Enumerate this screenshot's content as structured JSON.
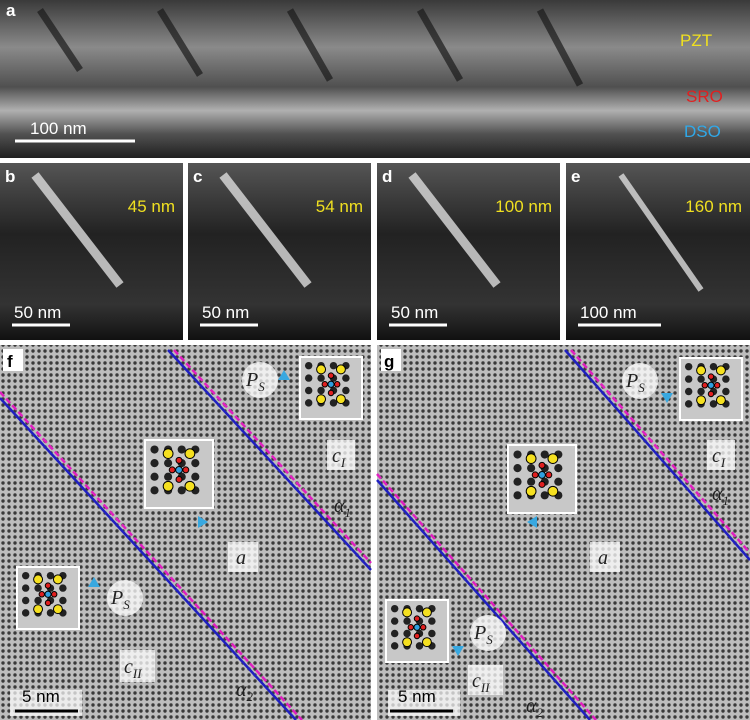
{
  "panels": [
    {
      "letter": "a",
      "layers": [
        "PZT",
        "SRO",
        "DSO"
      ],
      "scale_bar": "100 nm"
    },
    {
      "letter": "b",
      "thickness": "45 nm",
      "scale_bar": "50 nm"
    },
    {
      "letter": "c",
      "thickness": "54 nm",
      "scale_bar": "50 nm"
    },
    {
      "letter": "d",
      "thickness": "100 nm",
      "scale_bar": "50 nm"
    },
    {
      "letter": "e",
      "thickness": "160 nm",
      "scale_bar": "100 nm"
    },
    {
      "letter": "f",
      "ps_labels": [
        {
          "main": "P",
          "sub": "S"
        },
        {
          "main": "P",
          "sub": "S"
        }
      ],
      "domains": [
        {
          "main": "c",
          "sub": "I"
        },
        {
          "main": "a"
        },
        {
          "main": "c",
          "sub": "II"
        }
      ],
      "walls": [
        {
          "main": "α",
          "sub": "1"
        },
        {
          "main": "α",
          "sub": "2"
        }
      ],
      "scale_bar": "5 nm"
    },
    {
      "letter": "g",
      "ps_labels": [
        {
          "main": "P",
          "sub": "S"
        },
        {
          "main": "P",
          "sub": "S"
        }
      ],
      "domains": [
        {
          "main": "c",
          "sub": "I"
        },
        {
          "main": "a"
        },
        {
          "main": "c",
          "sub": "II"
        }
      ],
      "walls": [
        {
          "main": "α",
          "sub": "1"
        },
        {
          "main": "α",
          "sub": "2"
        }
      ],
      "scale_bar": "5 nm"
    }
  ]
}
